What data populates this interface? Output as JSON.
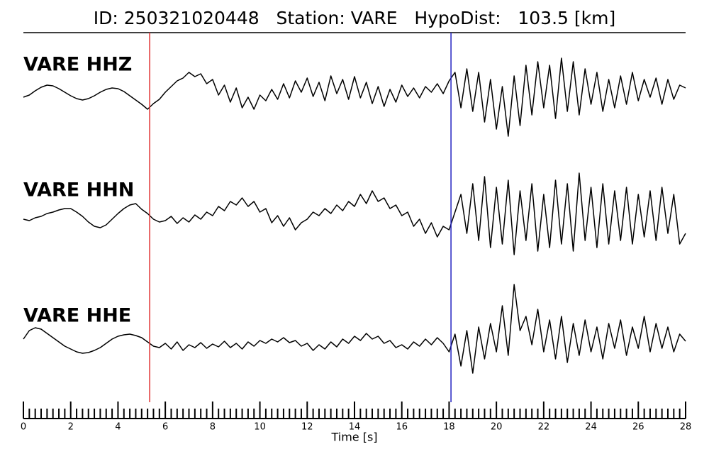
{
  "chart_data": {
    "type": "waveform",
    "title": "ID: 250321020448   Station: VARE   HypoDist:   103.5 [km]",
    "xlabel": "Time [s]",
    "xlim": [
      0,
      28
    ],
    "xticks": [
      0,
      2,
      4,
      6,
      8,
      10,
      12,
      14,
      16,
      18,
      20,
      22,
      24,
      26,
      28
    ],
    "xminorticks": [
      0.25,
      0.5,
      0.75,
      1,
      1.25,
      1.5,
      1.75,
      2.25,
      2.5,
      2.75,
      3,
      3.25,
      3.5,
      3.75,
      4.25,
      4.5,
      4.75,
      5,
      5.25,
      5.5,
      5.75,
      6.25,
      6.5,
      6.75,
      7,
      7.25,
      7.5,
      7.75,
      8.25,
      8.5,
      8.75,
      9,
      9.25,
      9.5,
      9.75,
      10.25,
      10.5,
      10.75,
      11,
      11.25,
      11.5,
      11.75,
      12.25,
      12.5,
      12.75,
      13,
      13.25,
      13.5,
      13.75,
      14.25,
      14.5,
      14.75,
      15,
      15.25,
      15.5,
      15.75,
      16.25,
      16.5,
      16.75,
      17,
      17.25,
      17.5,
      17.75,
      18.25,
      18.5,
      18.75,
      19,
      19.25,
      19.5,
      19.75,
      20.25,
      20.5,
      20.75,
      21,
      21.25,
      21.5,
      21.75,
      22.25,
      22.5,
      22.75,
      23,
      23.25,
      23.5,
      23.75,
      24.25,
      24.5,
      24.75,
      25,
      25.25,
      25.5,
      25.75,
      26.25,
      26.5,
      26.75,
      27,
      27.25,
      27.5,
      27.75
    ],
    "ylim": [
      -90,
      90
    ],
    "label_color": "#4a9a0a",
    "vlines": [
      {
        "x": 5.34,
        "color": "#e03030"
      },
      {
        "x": 18.08,
        "color": "#2222c0"
      }
    ],
    "x": [
      0,
      0.25,
      0.5,
      0.75,
      1,
      1.25,
      1.5,
      1.75,
      2,
      2.25,
      2.5,
      2.75,
      3,
      3.25,
      3.5,
      3.75,
      4,
      4.25,
      4.5,
      4.75,
      5,
      5.25,
      5.5,
      5.75,
      6,
      6.25,
      6.5,
      6.75,
      7,
      7.25,
      7.5,
      7.75,
      8,
      8.25,
      8.5,
      8.75,
      9,
      9.25,
      9.5,
      9.75,
      10,
      10.25,
      10.5,
      10.75,
      11,
      11.25,
      11.5,
      11.75,
      12,
      12.25,
      12.5,
      12.75,
      13,
      13.25,
      13.5,
      13.75,
      14,
      14.25,
      14.5,
      14.75,
      15,
      15.25,
      15.5,
      15.75,
      16,
      16.25,
      16.5,
      16.75,
      17,
      17.25,
      17.5,
      17.75,
      18,
      18.25,
      18.5,
      18.75,
      19,
      19.25,
      19.5,
      19.75,
      20,
      20.25,
      20.5,
      20.75,
      21,
      21.25,
      21.5,
      21.75,
      22,
      22.25,
      22.5,
      22.75,
      23,
      23.25,
      23.5,
      23.75,
      24,
      24.25,
      24.5,
      24.75,
      25,
      25.25,
      25.5,
      25.75,
      26,
      26.25,
      26.5,
      26.75,
      27,
      27.25,
      27.5,
      27.75,
      28
    ],
    "series": [
      {
        "name": "VARE HHZ",
        "color": "#000000",
        "values": [
          -5,
          -2,
          4,
          9,
          12,
          11,
          7,
          2,
          -3,
          -7,
          -9,
          -7,
          -3,
          2,
          6,
          8,
          7,
          3,
          -3,
          -9,
          -15,
          -22,
          -14,
          -8,
          2,
          10,
          18,
          22,
          30,
          24,
          28,
          14,
          20,
          -2,
          12,
          -12,
          8,
          -20,
          -5,
          -22,
          -2,
          -10,
          6,
          -8,
          14,
          -6,
          18,
          2,
          22,
          -4,
          16,
          -10,
          25,
          0,
          20,
          -8,
          24,
          -6,
          16,
          -14,
          10,
          -18,
          6,
          -12,
          12,
          -4,
          8,
          -6,
          10,
          2,
          14,
          0,
          18,
          30,
          -20,
          35,
          -25,
          30,
          -40,
          20,
          -50,
          10,
          -60,
          25,
          -45,
          40,
          -30,
          45,
          -20,
          40,
          -35,
          50,
          -25,
          45,
          -30,
          35,
          -15,
          30,
          -25,
          20,
          -20,
          25,
          -15,
          30,
          -10,
          20,
          -5,
          22,
          -15,
          20,
          -8,
          12,
          8
        ]
      },
      {
        "name": "VARE HHN",
        "color": "#000000",
        "values": [
          0,
          -2,
          2,
          4,
          8,
          10,
          13,
          15,
          15,
          10,
          4,
          -4,
          -10,
          -12,
          -8,
          0,
          8,
          15,
          20,
          22,
          14,
          8,
          0,
          -4,
          -2,
          4,
          -6,
          2,
          -4,
          6,
          0,
          10,
          5,
          18,
          12,
          25,
          20,
          30,
          18,
          25,
          10,
          15,
          -5,
          5,
          -10,
          2,
          -15,
          -5,
          0,
          10,
          5,
          15,
          8,
          20,
          12,
          25,
          18,
          35,
          22,
          40,
          25,
          30,
          15,
          20,
          5,
          10,
          -10,
          0,
          -20,
          -5,
          -25,
          -10,
          -15,
          10,
          35,
          -20,
          50,
          -30,
          60,
          -40,
          45,
          -35,
          55,
          -50,
          40,
          -30,
          50,
          -45,
          35,
          -40,
          55,
          -35,
          50,
          -45,
          65,
          -30,
          45,
          -40,
          50,
          -35,
          40,
          -30,
          45,
          -35,
          35,
          -25,
          40,
          -30,
          45,
          -20,
          35,
          -35,
          -20
        ]
      },
      {
        "name": "VARE HHE",
        "color": "#000000",
        "values": [
          8,
          20,
          24,
          22,
          16,
          10,
          4,
          -2,
          -6,
          -10,
          -12,
          -11,
          -8,
          -4,
          2,
          8,
          12,
          14,
          15,
          13,
          10,
          4,
          -2,
          -4,
          2,
          -6,
          4,
          -8,
          0,
          -4,
          3,
          -5,
          1,
          -3,
          5,
          -4,
          2,
          -6,
          4,
          -2,
          6,
          2,
          8,
          4,
          10,
          3,
          6,
          -2,
          2,
          -8,
          0,
          -6,
          4,
          -3,
          8,
          2,
          12,
          6,
          16,
          8,
          12,
          2,
          6,
          -4,
          0,
          -6,
          4,
          -2,
          8,
          0,
          10,
          2,
          -10,
          15,
          -30,
          20,
          -40,
          25,
          -20,
          30,
          -10,
          55,
          -15,
          85,
          20,
          40,
          0,
          50,
          -10,
          35,
          -20,
          40,
          -25,
          30,
          -15,
          35,
          -10,
          25,
          -20,
          30,
          -5,
          35,
          -15,
          25,
          -5,
          40,
          -10,
          30,
          -5,
          25,
          -10,
          15,
          5
        ]
      }
    ]
  }
}
